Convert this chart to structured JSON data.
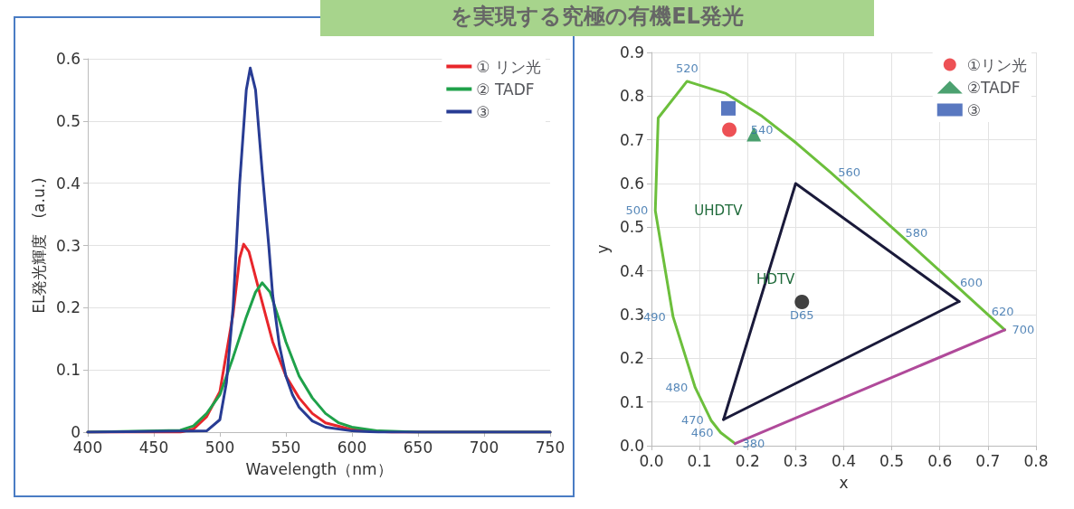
{
  "chart_data": [
    {
      "type": "line",
      "title": "を実現する究極の有機EL発光",
      "xlabel": "Wavelength（nm）",
      "ylabel": "EL発光輝度　(a.u.)",
      "xlim": [
        400,
        750
      ],
      "xticks": [
        400,
        450,
        500,
        550,
        600,
        650,
        700,
        750
      ],
      "ylim": [
        0,
        0.6
      ],
      "yticks": [
        0,
        0.1,
        0.2,
        0.3,
        0.4,
        0.5,
        0.6
      ],
      "grid": "y",
      "legend": "top right",
      "marker": "none",
      "series": [
        {
          "name": "① リン光",
          "color": "#e8262b",
          "x": [
            400,
            470,
            480,
            490,
            500,
            510,
            515,
            518,
            522,
            530,
            540,
            550,
            560,
            570,
            580,
            600,
            630,
            750
          ],
          "values": [
            0,
            0,
            0.005,
            0.025,
            0.065,
            0.19,
            0.28,
            0.302,
            0.29,
            0.225,
            0.145,
            0.09,
            0.055,
            0.03,
            0.015,
            0.004,
            0,
            0
          ]
        },
        {
          "name": "② TADF",
          "color": "#1fa14a",
          "x": [
            400,
            470,
            480,
            490,
            500,
            510,
            520,
            527,
            532,
            538,
            545,
            550,
            560,
            570,
            580,
            590,
            600,
            620,
            650,
            750
          ],
          "values": [
            0,
            0.003,
            0.01,
            0.03,
            0.06,
            0.12,
            0.185,
            0.225,
            0.24,
            0.225,
            0.18,
            0.145,
            0.09,
            0.055,
            0.03,
            0.015,
            0.008,
            0.002,
            0,
            0
          ]
        },
        {
          "name": "③",
          "color": "#283c94",
          "x": [
            400,
            490,
            500,
            505,
            510,
            515,
            520,
            523,
            527,
            532,
            537,
            540,
            545,
            550,
            555,
            560,
            570,
            580,
            600,
            620,
            750
          ],
          "values": [
            0,
            0.002,
            0.02,
            0.08,
            0.2,
            0.4,
            0.55,
            0.585,
            0.55,
            0.42,
            0.3,
            0.22,
            0.14,
            0.09,
            0.06,
            0.04,
            0.018,
            0.008,
            0.002,
            0,
            0
          ]
        }
      ]
    },
    {
      "type": "scatter",
      "xlabel": "x",
      "ylabel": "y",
      "xlim": [
        0,
        0.8
      ],
      "xticks": [
        {
          "value": 0,
          "label": "0.0"
        },
        0.1,
        0.2,
        0.3,
        0.4,
        0.5,
        0.6,
        0.7,
        0.8
      ],
      "ylim": [
        0,
        0.9
      ],
      "yticks": [
        {
          "value": 0,
          "label": "0.0"
        },
        0.1,
        0.2,
        0.3,
        0.4,
        0.5,
        0.6,
        0.7,
        0.8,
        0.9
      ],
      "grid": true,
      "legend": "top right",
      "series": [
        {
          "name": "①リン光",
          "color": "#e8262b",
          "marker": "circle",
          "x": [
            0.162
          ],
          "values": [
            0.723
          ]
        },
        {
          "name": "②TADF",
          "color": "#1f8a4c",
          "marker": "triangle",
          "x": [
            0.213
          ],
          "values": [
            0.713
          ]
        },
        {
          "name": "③",
          "color": "#2f56b0",
          "marker": "square",
          "x": [
            0.16
          ],
          "values": [
            0.772
          ]
        },
        {
          "color": "#111111",
          "marker": "circle",
          "x": [
            0.313
          ],
          "values": [
            0.329
          ]
        },
        {
          "type": "line",
          "color": "#1a1a3a",
          "x": [
            0.15,
            0.3,
            0.64
          ],
          "values": [
            0.06,
            0.6,
            0.33
          ]
        },
        {
          "type": "line",
          "color": "#1a1a3a",
          "x": [
            0.15,
            0.64
          ],
          "values": [
            0.06,
            0.33
          ]
        },
        {
          "type": "line",
          "color": "#6cbf3c",
          "x": [
            0.174,
            0.144,
            0.124,
            0.091,
            0.045,
            0.008,
            0.014,
            0.074,
            0.155,
            0.23,
            0.302,
            0.373,
            0.444,
            0.513,
            0.627,
            0.692,
            0.735
          ],
          "values": [
            0.005,
            0.03,
            0.058,
            0.133,
            0.295,
            0.538,
            0.75,
            0.834,
            0.806,
            0.754,
            0.692,
            0.625,
            0.555,
            0.487,
            0.373,
            0.308,
            0.265
          ]
        },
        {
          "type": "line",
          "color": "#b04a9a",
          "x": [
            0.174,
            0.735
          ],
          "values": [
            0.005,
            0.265
          ]
        }
      ],
      "annotations": [
        {
          "text": "520",
          "x": 0.074,
          "y": 0.834
        },
        {
          "text": "540",
          "x": 0.23,
          "y": 0.754
        },
        {
          "text": "560",
          "x": 0.373,
          "y": 0.625
        },
        {
          "text": "580",
          "x": 0.513,
          "y": 0.487
        },
        {
          "text": "600",
          "x": 0.627,
          "y": 0.373
        },
        {
          "text": "620",
          "x": 0.692,
          "y": 0.308
        },
        {
          "text": "700",
          "x": 0.735,
          "y": 0.265
        },
        {
          "text": "500",
          "x": 0.008,
          "y": 0.538
        },
        {
          "text": "490",
          "x": 0.045,
          "y": 0.295
        },
        {
          "text": "480",
          "x": 0.091,
          "y": 0.133
        },
        {
          "text": "470",
          "x": 0.124,
          "y": 0.058
        },
        {
          "text": "460",
          "x": 0.144,
          "y": 0.03
        },
        {
          "text": "380",
          "x": 0.174,
          "y": 0.005
        },
        "UHDTV",
        "HDTV",
        {
          "text": "D65",
          "x": 0.313,
          "y": 0.329
        }
      ]
    }
  ]
}
